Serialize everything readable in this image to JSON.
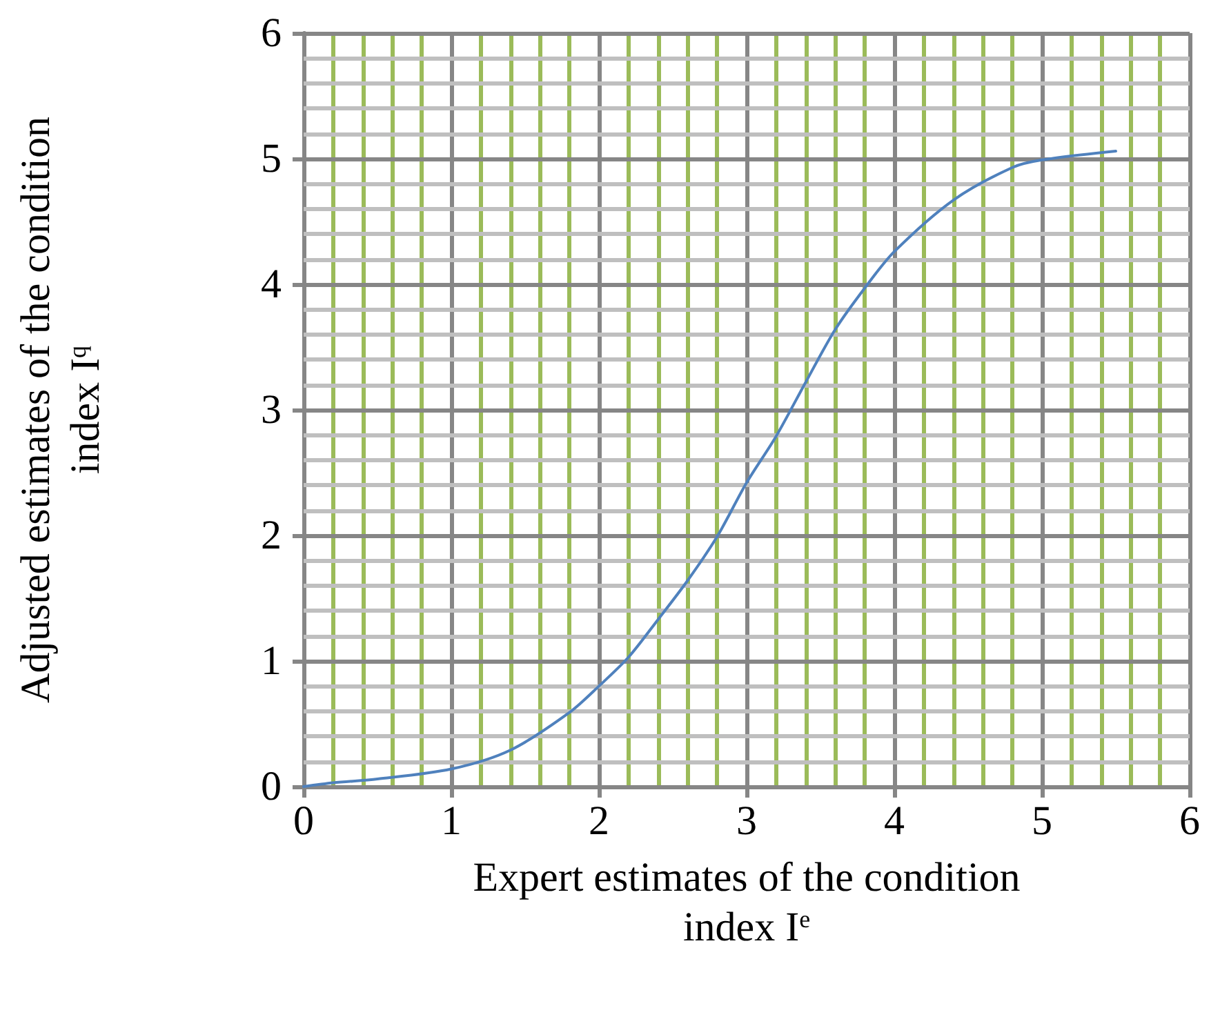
{
  "chart_data": {
    "type": "line",
    "xlabel": "Expert estimates of the condition index I$^{e}$",
    "ylabel": "Adjusted estimates of the condition index I$^{q}$",
    "x": [
      0,
      0.2,
      0.5,
      1,
      1.4,
      1.8,
      2,
      2.2,
      2.4,
      2.6,
      2.8,
      3,
      3.2,
      3.4,
      3.6,
      3.8,
      4,
      4.4,
      4.8,
      5,
      5.5
    ],
    "series": [
      {
        "color": "#4f81bd",
        "values": [
          0,
          0.03,
          0.06,
          0.14,
          0.29,
          0.59,
          0.8,
          1.03,
          1.33,
          1.64,
          1.99,
          2.42,
          2.79,
          3.22,
          3.64,
          3.97,
          4.26,
          4.67,
          4.93,
          4.99,
          5.06
        ]
      }
    ],
    "xlim": [
      0,
      6
    ],
    "ylim": [
      0,
      6
    ],
    "xticks": [
      0,
      {
        "value": 0.2,
        "label": null
      },
      {
        "value": 0.4,
        "label": null
      },
      {
        "value": 0.6,
        "label": null
      },
      {
        "value": 0.8,
        "label": null
      },
      1,
      {
        "value": 1.2,
        "label": null
      },
      {
        "value": 1.4,
        "label": null
      },
      {
        "value": 1.6,
        "label": null
      },
      {
        "value": 1.8,
        "label": null
      },
      2,
      {
        "value": 2.2,
        "label": null
      },
      {
        "value": 2.4,
        "label": null
      },
      {
        "value": 2.6,
        "label": null
      },
      {
        "value": 2.8,
        "label": null
      },
      3,
      {
        "value": 3.2,
        "label": null
      },
      {
        "value": 3.4,
        "label": null
      },
      {
        "value": 3.6,
        "label": null
      },
      {
        "value": 3.8,
        "label": null
      },
      4,
      {
        "value": 4.2,
        "label": null
      },
      {
        "value": 4.4,
        "label": null
      },
      {
        "value": 4.6,
        "label": null
      },
      {
        "value": 4.8,
        "label": null
      },
      5,
      {
        "value": 5.2,
        "label": null
      },
      {
        "value": 5.4,
        "label": null
      },
      {
        "value": 5.6,
        "label": null
      },
      {
        "value": 5.8,
        "label": null
      },
      6
    ],
    "yticks": [
      0,
      {
        "value": 0.2,
        "label": null
      },
      {
        "value": 0.4,
        "label": null
      },
      {
        "value": 0.6,
        "label": null
      },
      {
        "value": 0.8,
        "label": null
      },
      1,
      {
        "value": 1.2,
        "label": null
      },
      {
        "value": 1.4,
        "label": null
      },
      {
        "value": 1.6,
        "label": null
      },
      {
        "value": 1.8,
        "label": null
      },
      2,
      {
        "value": 2.2,
        "label": null
      },
      {
        "value": 2.4,
        "label": null
      },
      {
        "value": 2.6,
        "label": null
      },
      {
        "value": 2.8,
        "label": null
      },
      3,
      {
        "value": 3.2,
        "label": null
      },
      {
        "value": 3.4,
        "label": null
      },
      {
        "value": 3.6,
        "label": null
      },
      {
        "value": 3.8,
        "label": null
      },
      4,
      {
        "value": 4.2,
        "label": null
      },
      {
        "value": 4.4,
        "label": null
      },
      {
        "value": 4.6,
        "label": null
      },
      {
        "value": 4.8,
        "label": null
      },
      5,
      {
        "value": 5.2,
        "label": null
      },
      {
        "value": 5.4,
        "label": null
      },
      {
        "value": 5.6,
        "label": null
      },
      {
        "value": 5.8,
        "label": null
      },
      6
    ],
    "grid": true,
    "marker": "none",
    "line_style": "solid"
  }
}
